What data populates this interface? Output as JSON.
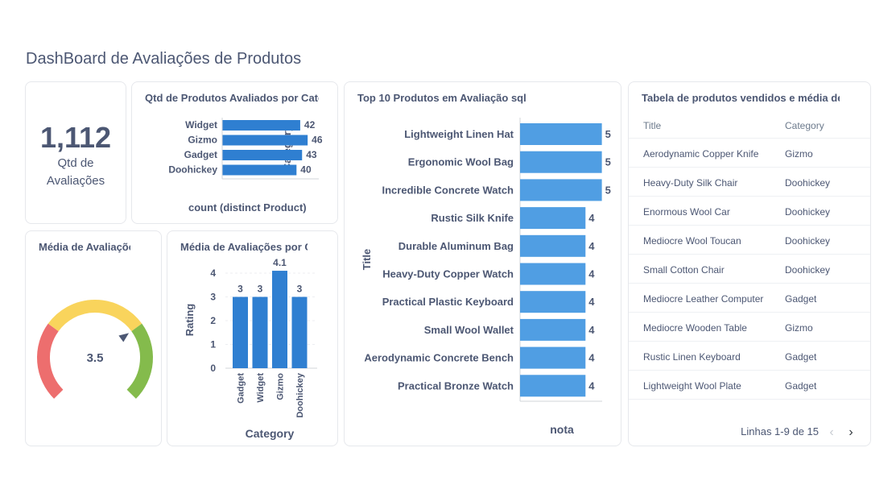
{
  "dashboard": {
    "title": "DashBoard de Avaliações de Produtos"
  },
  "scalar_card": {
    "value": "1,112",
    "label_line1": "Qtd de",
    "label_line2": "Avaliações"
  },
  "hbar_card": {
    "title": "Qtd de Produtos Avaliados por Categoria",
    "xlabel": "count (distinct Product)",
    "ylabel": "Category"
  },
  "gauge_card": {
    "title": "Média de Avaliações",
    "value_label": "3.5"
  },
  "vbar_card": {
    "title": "Média de Avaliações por Categoria",
    "xlabel": "Category",
    "ylabel": "Rating"
  },
  "top10_card": {
    "title": "Top 10 Produtos em Avaliação sql",
    "xlabel": "nota",
    "ylabel": "Title"
  },
  "table_card": {
    "title": "Tabela de produtos vendidos e média de avaliações",
    "columns": [
      "Title",
      "Category"
    ],
    "rows": [
      {
        "title": "Aerodynamic Copper Knife",
        "category": "Gizmo"
      },
      {
        "title": "Heavy-Duty Silk Chair",
        "category": "Doohickey"
      },
      {
        "title": "Enormous Wool Car",
        "category": "Doohickey"
      },
      {
        "title": "Mediocre Wool Toucan",
        "category": "Doohickey"
      },
      {
        "title": "Small Cotton Chair",
        "category": "Doohickey"
      },
      {
        "title": "Mediocre Leather Computer",
        "category": "Gadget"
      },
      {
        "title": "Mediocre Wooden Table",
        "category": "Gizmo"
      },
      {
        "title": "Rustic Linen Keyboard",
        "category": "Gadget"
      },
      {
        "title": "Lightweight Wool Plate",
        "category": "Gadget"
      }
    ],
    "pager_text": "Linhas 1-9 de 15",
    "prev_icon": "chevron-left-icon",
    "next_icon": "chevron-right-icon"
  },
  "colors": {
    "bar": "#2f7fd1",
    "bar_light": "#509ee3",
    "gauge_red": "#ed6e6e",
    "gauge_yellow": "#f9d45c",
    "gauge_green": "#84bb4c"
  },
  "chart_data": [
    {
      "type": "bar",
      "orientation": "horizontal",
      "categories": [
        "Widget",
        "Gizmo",
        "Gadget",
        "Doohickey"
      ],
      "values": [
        42,
        46,
        43,
        40
      ],
      "xlabel": "count (distinct Product)",
      "ylabel": "Category",
      "xlim": [
        0,
        52
      ],
      "grid": false
    },
    {
      "type": "gauge",
      "value": 3.5,
      "range": [
        0,
        5
      ],
      "segments": [
        {
          "from": 0,
          "to": 1.5,
          "color": "#ed6e6e"
        },
        {
          "from": 1.5,
          "to": 3.5,
          "color": "#f9d45c"
        },
        {
          "from": 3.5,
          "to": 5,
          "color": "#84bb4c"
        }
      ]
    },
    {
      "type": "bar",
      "orientation": "vertical",
      "categories": [
        "Gadget",
        "Widget",
        "Gizmo",
        "Doohickey"
      ],
      "values": [
        3,
        3,
        4.1,
        3
      ],
      "value_labels": [
        "3",
        "3",
        "4.1",
        "3"
      ],
      "xlabel": "Category",
      "ylabel": "Rating",
      "ylim": [
        0,
        4
      ],
      "yticks": [
        "0",
        "1",
        "2",
        "3",
        "4"
      ]
    },
    {
      "type": "bar",
      "orientation": "horizontal",
      "categories": [
        "Lightweight Linen Hat",
        "Ergonomic Wool Bag",
        "Incredible Concrete Watch",
        "Rustic Silk Knife",
        "Durable Aluminum Bag",
        "Heavy-Duty Copper Watch",
        "Practical Plastic Keyboard",
        "Small Wool Wallet",
        "Aerodynamic Concrete Bench",
        "Practical Bronze Watch"
      ],
      "values": [
        5,
        5,
        5,
        4,
        4,
        4,
        4,
        4,
        4,
        4
      ],
      "xlabel": "nota",
      "ylabel": "Title",
      "xlim": [
        0,
        6.2
      ]
    }
  ]
}
